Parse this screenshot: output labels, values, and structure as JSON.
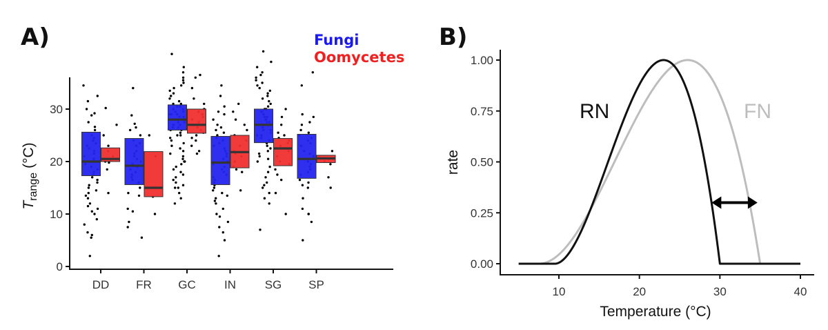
{
  "figure": {
    "panel_a_label": "A)",
    "panel_b_label": "B)"
  },
  "chart_data": [
    {
      "type": "box",
      "title": "",
      "ylabel_main": "T",
      "ylabel_sub": "range",
      "ylabel_unit": "(°C)",
      "ylim": [
        0,
        37
      ],
      "yticks": [
        0,
        10,
        20,
        30
      ],
      "categories": [
        "DD",
        "FR",
        "GC",
        "IN",
        "SG",
        "SP"
      ],
      "legend": [
        {
          "name": "Fungi",
          "color": "#1a1af0"
        },
        {
          "name": "Oomycetes",
          "color": "#f02020"
        }
      ],
      "series": [
        {
          "name": "Fungi",
          "color": "#2424ee",
          "boxes": [
            {
              "category": "DD",
              "q1": 17.3,
              "median": 20.0,
              "q3": 25.6
            },
            {
              "category": "FR",
              "q1": 15.6,
              "median": 19.2,
              "q3": 24.4
            },
            {
              "category": "GC",
              "q1": 26.0,
              "median": 28.0,
              "q3": 30.8
            },
            {
              "category": "IN",
              "q1": 15.6,
              "median": 19.8,
              "q3": 24.8
            },
            {
              "category": "SG",
              "q1": 23.6,
              "median": 27.0,
              "q3": 30.0
            },
            {
              "category": "SP",
              "q1": 16.8,
              "median": 20.5,
              "q3": 25.2
            }
          ]
        },
        {
          "name": "Oomycetes",
          "color": "#f03030",
          "boxes": [
            {
              "category": "DD",
              "q1": 20.0,
              "median": 20.5,
              "q3": 22.6
            },
            {
              "category": "FR",
              "q1": 13.3,
              "median": 15.0,
              "q3": 21.9
            },
            {
              "category": "GC",
              "q1": 25.4,
              "median": 27.0,
              "q3": 30.0
            },
            {
              "category": "IN",
              "q1": 18.8,
              "median": 21.8,
              "q3": 25.0
            },
            {
              "category": "SG",
              "q1": 19.2,
              "median": 22.5,
              "q3": 24.4
            },
            {
              "category": "SP",
              "q1": 19.8,
              "median": 20.6,
              "q3": 21.2
            }
          ]
        }
      ],
      "jitter_points": {
        "DD": {
          "Fungi": [
            34.5,
            32.5,
            31.5,
            30.0,
            29.2,
            28.8,
            27.5,
            26.6,
            26.0,
            25.0,
            24.5,
            24.0,
            23.5,
            23.0,
            22.5,
            22.0,
            21.5,
            21.0,
            20.5,
            20.0,
            20.0,
            20.0,
            19.5,
            19.0,
            18.5,
            18.0,
            17.5,
            17.0,
            16.5,
            16.0,
            15.5,
            15.0,
            14.5,
            14.0,
            13.5,
            13.0,
            12.0,
            11.5,
            11.0,
            10.5,
            10.0,
            9.0,
            8.0,
            6.5,
            6.0,
            5.5,
            2.0
          ],
          "Oomycetes": [
            30.2,
            27.0,
            25.0,
            23.0,
            22.0,
            21.0,
            20.5,
            20.2,
            20.0,
            19.8,
            18.5,
            14.0
          ]
        },
        "FR": {
          "Fungi": [
            34.0,
            28.8,
            27.2,
            26.5,
            26.0,
            25.0,
            24.0,
            23.5,
            23.0,
            22.0,
            21.5,
            21.0,
            20.5,
            20.0,
            19.5,
            19.0,
            18.5,
            18.0,
            17.5,
            17.0,
            16.5,
            16.0,
            15.0,
            14.0,
            13.5,
            11.0,
            10.5,
            8.5,
            7.5,
            5.5
          ],
          "Oomycetes": [
            25.0,
            21.0,
            15.0,
            13.3,
            10.0
          ]
        },
        "GC": {
          "Fungi": [
            40.5,
            38.0,
            37.0,
            36.0,
            35.5,
            35.0,
            34.5,
            34.0,
            33.5,
            33.0,
            32.5,
            32.0,
            31.5,
            31.0,
            31.0,
            30.5,
            30.5,
            30.0,
            30.0,
            30.0,
            29.5,
            29.5,
            29.0,
            29.0,
            29.0,
            28.5,
            28.5,
            28.0,
            28.0,
            28.0,
            28.0,
            27.5,
            27.5,
            27.0,
            27.0,
            27.0,
            26.5,
            26.5,
            26.0,
            26.0,
            25.5,
            25.0,
            25.0,
            24.5,
            24.0,
            23.5,
            23.0,
            22.5,
            22.0,
            21.5,
            21.0,
            20.5,
            20.0,
            20.0,
            19.5,
            19.0,
            18.5,
            18.0,
            17.5,
            17.0,
            16.5,
            16.0,
            15.5,
            15.0,
            15.0,
            14.0,
            13.0,
            12.0
          ],
          "Oomycetes": [
            36.5,
            36.0,
            34.0,
            32.0,
            31.0,
            30.0,
            29.5,
            29.0,
            28.5,
            28.0,
            27.5,
            27.0,
            27.0,
            26.5,
            26.0,
            25.5,
            25.0,
            24.5,
            24.0,
            23.0,
            22.0,
            21.5
          ]
        },
        "IN": {
          "Fungi": [
            34.5,
            32.5,
            30.5,
            29.5,
            29.0,
            28.0,
            27.0,
            26.5,
            26.0,
            25.5,
            25.0,
            24.5,
            24.0,
            23.5,
            23.0,
            22.5,
            22.0,
            21.5,
            21.0,
            20.5,
            20.0,
            19.5,
            19.0,
            18.5,
            18.0,
            17.5,
            17.0,
            16.5,
            16.0,
            15.5,
            15.0,
            14.5,
            14.0,
            13.5,
            13.0,
            12.5,
            12.0,
            11.0,
            10.0,
            9.5,
            8.5,
            7.5,
            6.5,
            5.0,
            2.0
          ],
          "Oomycetes": [
            31.0,
            29.5,
            28.0,
            27.0,
            26.0,
            25.0,
            24.0,
            23.0,
            22.0,
            21.5,
            21.0,
            20.0,
            19.0,
            18.5,
            18.0,
            14.5
          ]
        },
        "SG": {
          "Fungi": [
            41.0,
            39.0,
            38.0,
            37.0,
            36.5,
            36.0,
            35.5,
            35.0,
            34.5,
            34.0,
            33.5,
            33.0,
            32.5,
            32.0,
            31.5,
            31.0,
            30.5,
            30.0,
            30.0,
            29.5,
            29.5,
            29.0,
            29.0,
            28.5,
            28.5,
            28.0,
            28.0,
            27.5,
            27.5,
            27.0,
            27.0,
            26.5,
            26.0,
            26.0,
            25.5,
            25.0,
            25.0,
            24.5,
            24.0,
            23.5,
            23.0,
            22.5,
            22.0,
            21.5,
            21.0,
            20.5,
            20.0,
            19.0,
            18.0,
            17.0,
            16.0,
            15.5,
            15.0,
            14.0,
            13.0,
            12.0,
            7.0
          ],
          "Oomycetes": [
            30.0,
            28.5,
            27.0,
            25.5,
            25.0,
            24.5,
            24.0,
            23.5,
            23.0,
            22.5,
            22.0,
            21.0,
            20.0,
            19.5,
            18.5,
            17.5,
            16.5,
            14.0,
            10.0
          ]
        },
        "SP": {
          "Fungi": [
            37.0,
            34.5,
            29.0,
            28.5,
            27.5,
            27.0,
            26.0,
            25.5,
            25.0,
            24.5,
            24.0,
            23.5,
            23.0,
            22.0,
            21.5,
            21.0,
            20.5,
            20.0,
            19.5,
            19.0,
            18.5,
            18.0,
            17.5,
            16.5,
            16.0,
            15.5,
            15.0,
            13.0,
            11.0,
            10.0,
            10.0,
            8.5,
            5.0
          ],
          "Oomycetes": [
            22.0,
            21.0,
            20.5,
            20.0,
            19.5,
            17.0,
            15.0
          ]
        }
      }
    },
    {
      "type": "line",
      "title": "",
      "xlabel": "Temperature (°C)",
      "ylabel": "rate",
      "xlim": [
        3.5,
        41.5
      ],
      "ylim": [
        -0.05,
        1.05
      ],
      "xticks": [
        10,
        20,
        30,
        40
      ],
      "yticks": [
        0.0,
        0.25,
        0.5,
        0.75,
        1.0
      ],
      "yticklabels": [
        "0.00",
        "0.25",
        "0.50",
        "0.75",
        "1.00"
      ],
      "series": [
        {
          "name": "RN",
          "color": "#111111",
          "tmin": 9.5,
          "topt": 23.0,
          "tmax": 30.0,
          "x_start": 5,
          "x_end": 40
        },
        {
          "name": "FN",
          "color": "#bdbdbd",
          "tmin": 7.5,
          "topt": 26.0,
          "tmax": 35.0,
          "x_start": 5,
          "x_end": 40
        }
      ],
      "annotations": [
        {
          "type": "double-arrow",
          "x_from": 30.0,
          "x_to": 34.5,
          "y": 0.3
        }
      ]
    }
  ]
}
